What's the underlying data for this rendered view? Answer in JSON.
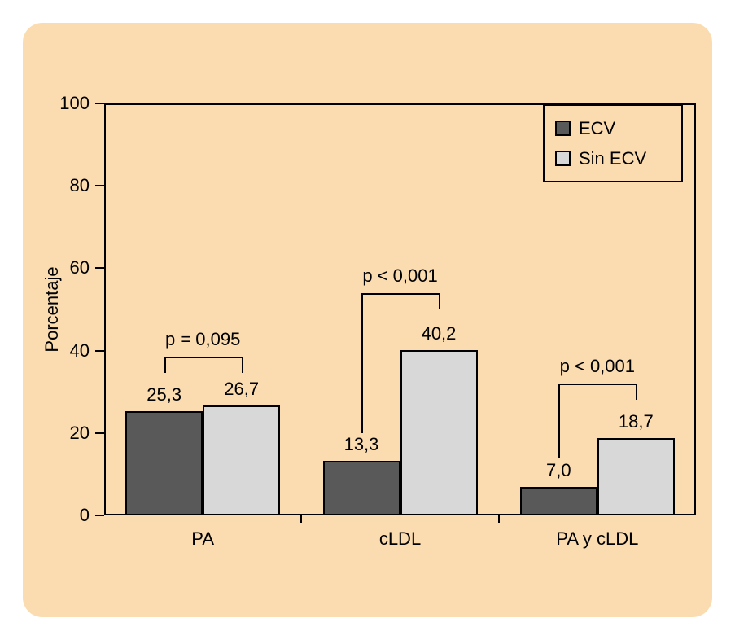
{
  "panel": {
    "background_color": "#fbdcb0"
  },
  "chart_data": {
    "type": "bar",
    "title": "",
    "xlabel": "",
    "ylabel": "Porcentaje",
    "ylim": [
      0,
      100
    ],
    "yticks": [
      0,
      20,
      40,
      60,
      80,
      100
    ],
    "grid": false,
    "categories": [
      "PA",
      "cLDL",
      "PA y cLDL"
    ],
    "series": [
      {
        "name": "ECV",
        "color": "#595959",
        "values": [
          25.3,
          13.3,
          7.0
        ]
      },
      {
        "name": "Sin ECV",
        "color": "#d8d8d8",
        "values": [
          26.7,
          40.2,
          18.7
        ]
      }
    ],
    "value_labels": [
      [
        "25,3",
        "13,3",
        "7,0"
      ],
      [
        "26,7",
        "40,2",
        "18,7"
      ]
    ],
    "annotations": [
      {
        "label": "p = 0,095",
        "top": 38.5,
        "left_end": 34.5,
        "right_end": 34.5
      },
      {
        "label": "p < 0,001",
        "top": 54.0,
        "left_end": 20.0,
        "right_end": 50.0
      },
      {
        "label": "p < 0,001",
        "top": 32.0,
        "left_end": 14.0,
        "right_end": 28.0
      }
    ],
    "legend": {
      "position": "top-right",
      "items": [
        {
          "label": "ECV",
          "color": "#595959"
        },
        {
          "label": "Sin ECV",
          "color": "#d8d8d8"
        }
      ]
    }
  }
}
